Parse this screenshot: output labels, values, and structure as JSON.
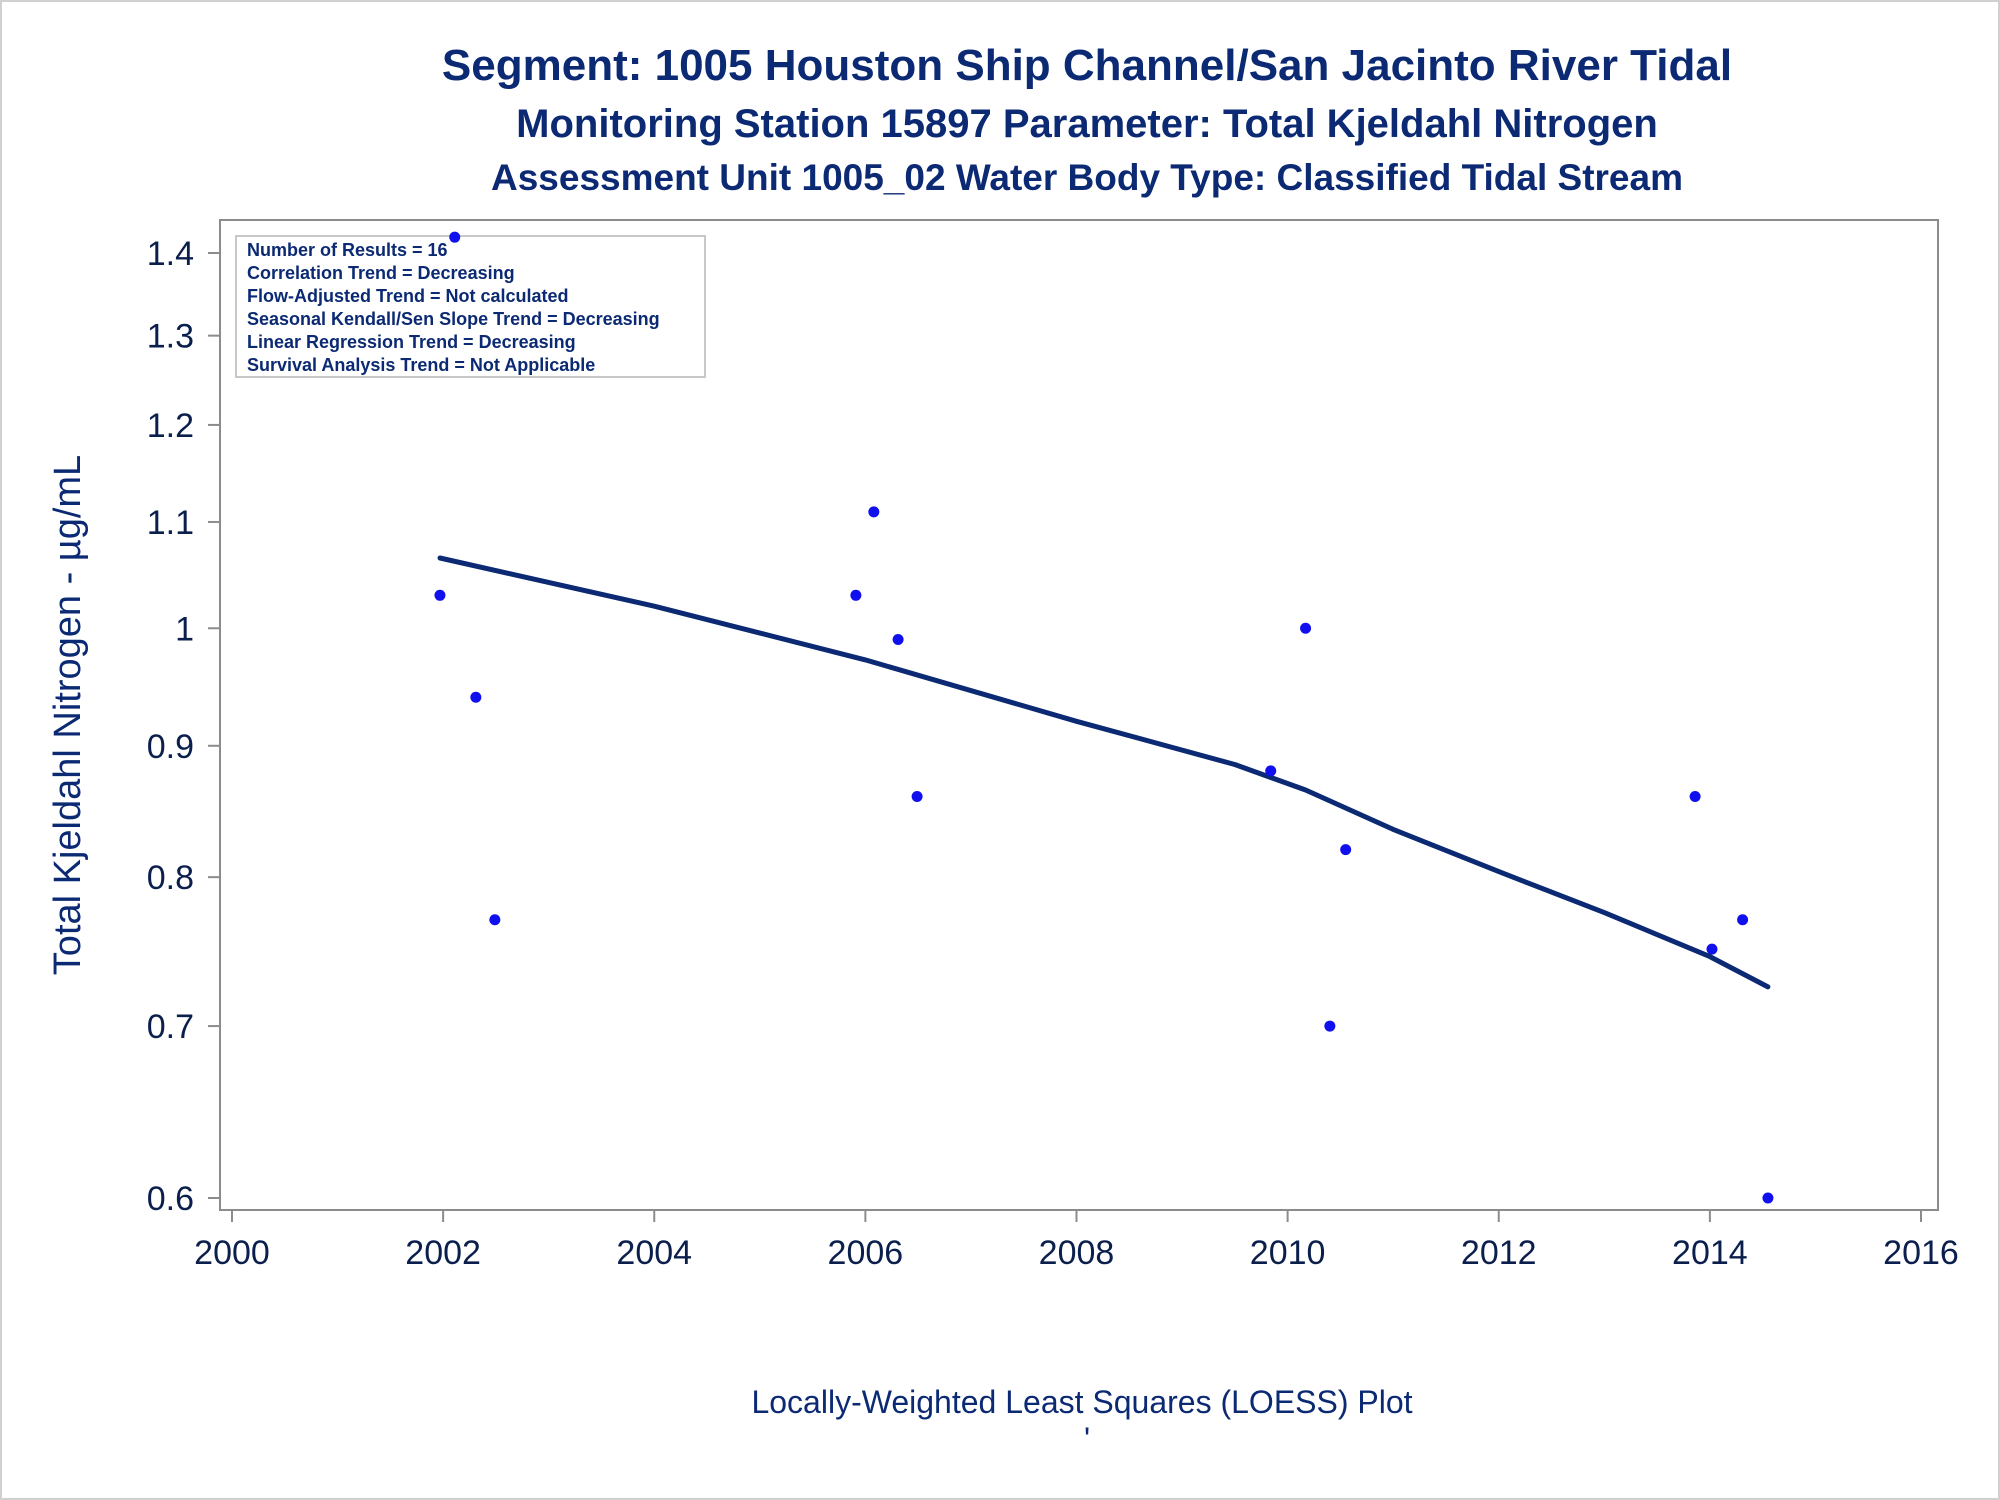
{
  "chart_data": {
    "type": "scatter",
    "title": "Segment: 1005  Houston Ship Channel/San Jacinto River Tidal",
    "subtitle": "Monitoring Station 15897 Parameter: Total Kjeldahl Nitrogen",
    "subtitle2": "Assessment Unit 1005_02   Water Body Type: Classified Tidal Stream",
    "ylabel": "Total Kjeldahl Nitrogen -  µg/mL",
    "xlabel": "Locally-Weighted Least Squares (LOESS) Plot",
    "footnote": "'",
    "xlim": [
      2000,
      2016
    ],
    "ylim": [
      0.6,
      1.4
    ],
    "yscale": "log",
    "xticks": [
      2000,
      2002,
      2004,
      2006,
      2008,
      2010,
      2012,
      2014,
      2016
    ],
    "xtick_labels": [
      "2000",
      "2002",
      "2004",
      "2006",
      "2008",
      "2010",
      "2012",
      "2014",
      "2016"
    ],
    "yticks": [
      0.6,
      0.7,
      0.8,
      0.9,
      1.0,
      1.1,
      1.2,
      1.3,
      1.4
    ],
    "ytick_labels": [
      "0.6",
      "0.7",
      "0.8",
      "0.9",
      "1",
      "1.1",
      "1.2",
      "1.3",
      "1.4"
    ],
    "grid": false,
    "stats_box": {
      "placement": "top-left",
      "lines": [
        "Number of Results = 16",
        "Correlation Trend = Decreasing",
        "Flow-Adjusted Trend = Not calculated",
        "Seasonal Kendall/Sen Slope Trend = Decreasing",
        "Linear Regression Trend = Decreasing",
        "Survival Analysis Trend = Not Applicable"
      ]
    },
    "point_color": "#1010ee",
    "line_color": "#0b2a73",
    "points": [
      {
        "x": 2001.97,
        "y": 1.03
      },
      {
        "x": 2002.11,
        "y": 1.42
      },
      {
        "x": 2002.31,
        "y": 0.94
      },
      {
        "x": 2002.49,
        "y": 0.77
      },
      {
        "x": 2005.91,
        "y": 1.03
      },
      {
        "x": 2006.08,
        "y": 1.11
      },
      {
        "x": 2006.31,
        "y": 0.99
      },
      {
        "x": 2006.49,
        "y": 0.86
      },
      {
        "x": 2009.84,
        "y": 0.88
      },
      {
        "x": 2010.17,
        "y": 1.0
      },
      {
        "x": 2010.4,
        "y": 0.7
      },
      {
        "x": 2010.55,
        "y": 0.82
      },
      {
        "x": 2013.86,
        "y": 0.86
      },
      {
        "x": 2014.02,
        "y": 0.75
      },
      {
        "x": 2014.31,
        "y": 0.77
      },
      {
        "x": 2014.55,
        "y": 0.6
      }
    ],
    "loess": [
      {
        "x": 2001.97,
        "y": 1.065
      },
      {
        "x": 2004.0,
        "y": 1.02
      },
      {
        "x": 2006.0,
        "y": 0.972
      },
      {
        "x": 2008.0,
        "y": 0.92
      },
      {
        "x": 2009.5,
        "y": 0.885
      },
      {
        "x": 2010.17,
        "y": 0.865
      },
      {
        "x": 2011.0,
        "y": 0.835
      },
      {
        "x": 2012.0,
        "y": 0.804
      },
      {
        "x": 2013.0,
        "y": 0.775
      },
      {
        "x": 2014.0,
        "y": 0.745
      },
      {
        "x": 2014.55,
        "y": 0.725
      }
    ]
  }
}
